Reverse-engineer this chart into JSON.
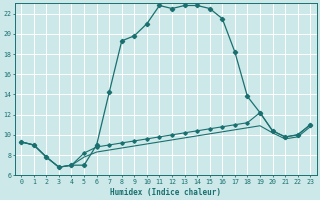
{
  "xlabel": "Humidex (Indice chaleur)",
  "bg_color": "#cce8e8",
  "grid_color": "#ffffff",
  "line_color": "#1a7070",
  "xlim": [
    -0.5,
    23.5
  ],
  "ylim": [
    6,
    23
  ],
  "xticks": [
    0,
    1,
    2,
    3,
    4,
    5,
    6,
    7,
    8,
    9,
    10,
    11,
    12,
    13,
    14,
    15,
    16,
    17,
    18,
    19,
    20,
    21,
    22,
    23
  ],
  "yticks": [
    6,
    8,
    10,
    12,
    14,
    16,
    18,
    20,
    22
  ],
  "series1_x": [
    0,
    1,
    2,
    3,
    4,
    5,
    6,
    7,
    8,
    9,
    10,
    11,
    12,
    13,
    14,
    15,
    16,
    17,
    18,
    19,
    20,
    21,
    22,
    23
  ],
  "series1_y": [
    9.3,
    9.0,
    7.8,
    6.8,
    7.0,
    7.0,
    9.0,
    14.2,
    19.3,
    19.8,
    21.0,
    22.8,
    22.5,
    22.8,
    22.8,
    22.5,
    21.5,
    18.2,
    13.8,
    12.2,
    10.4,
    9.8,
    10.0,
    11.0
  ],
  "series2_x": [
    0,
    1,
    2,
    3,
    4,
    5,
    6,
    7,
    8,
    9,
    10,
    11,
    12,
    13,
    14,
    15,
    16,
    17,
    18,
    19,
    20,
    21,
    22,
    23
  ],
  "series2_y": [
    9.3,
    9.0,
    7.8,
    6.8,
    7.0,
    8.2,
    8.8,
    9.0,
    9.2,
    9.4,
    9.6,
    9.8,
    10.0,
    10.2,
    10.4,
    10.6,
    10.8,
    11.0,
    11.2,
    12.2,
    10.4,
    9.8,
    10.0,
    11.0
  ],
  "series3_x": [
    0,
    1,
    2,
    3,
    4,
    5,
    6,
    7,
    8,
    9,
    10,
    11,
    12,
    13,
    14,
    15,
    16,
    17,
    18,
    19,
    20,
    21,
    22,
    23
  ],
  "series3_y": [
    9.3,
    9.0,
    7.8,
    6.8,
    7.0,
    7.8,
    8.3,
    8.5,
    8.7,
    8.9,
    9.1,
    9.3,
    9.5,
    9.7,
    9.9,
    10.1,
    10.3,
    10.5,
    10.7,
    10.9,
    10.2,
    9.6,
    9.8,
    10.8
  ]
}
